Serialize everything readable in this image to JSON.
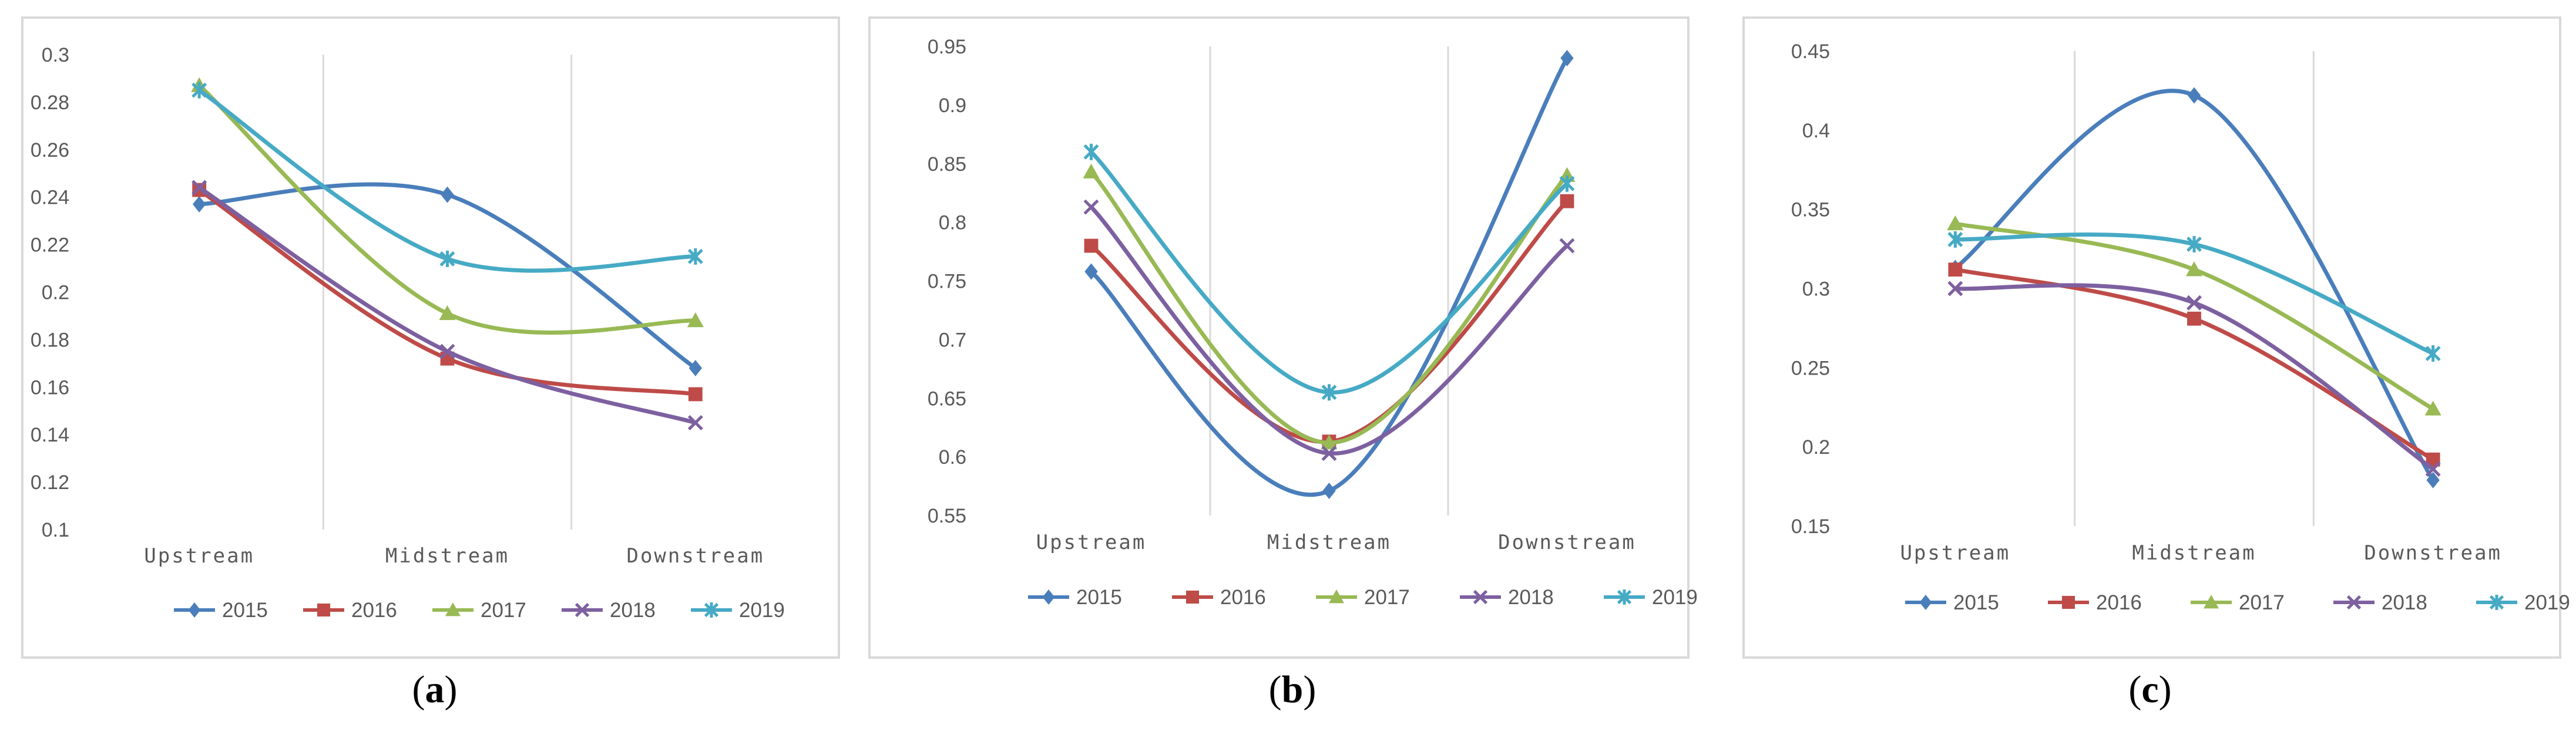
{
  "colors": {
    "2015": "#4a7ebb",
    "2016": "#be4b48",
    "2017": "#98b954",
    "2018": "#7d60a0",
    "2019": "#46aac5"
  },
  "chart_data": [
    {
      "type": "line",
      "panel_label": "a",
      "categories": [
        "Upstream",
        "Midstream",
        "Downstream"
      ],
      "ylim": [
        0.1,
        0.3
      ],
      "yticks": [
        "0.1",
        "0.12",
        "0.14",
        "0.16",
        "0.18",
        "0.2",
        "0.22",
        "0.24",
        "0.26",
        "0.28",
        "0.3"
      ],
      "legend_position": "bottom",
      "series": [
        {
          "name": "2015",
          "marker": "diamond",
          "values": [
            0.237,
            0.241,
            0.168
          ]
        },
        {
          "name": "2016",
          "marker": "square",
          "values": [
            0.243,
            0.172,
            0.157
          ]
        },
        {
          "name": "2017",
          "marker": "triangle",
          "values": [
            0.287,
            0.191,
            0.188
          ]
        },
        {
          "name": "2018",
          "marker": "x",
          "values": [
            0.244,
            0.175,
            0.145
          ]
        },
        {
          "name": "2019",
          "marker": "star",
          "values": [
            0.285,
            0.214,
            0.215
          ]
        }
      ]
    },
    {
      "type": "line",
      "panel_label": "b",
      "categories": [
        "Upstream",
        "Midstream",
        "Downstream"
      ],
      "ylim": [
        0.55,
        0.95
      ],
      "yticks": [
        "0.55",
        "0.6",
        "0.65",
        "0.7",
        "0.75",
        "0.8",
        "0.85",
        "0.9",
        "0.95"
      ],
      "legend_position": "bottom",
      "series": [
        {
          "name": "2015",
          "marker": "diamond",
          "values": [
            0.758,
            0.571,
            0.94
          ]
        },
        {
          "name": "2016",
          "marker": "square",
          "values": [
            0.78,
            0.613,
            0.818
          ]
        },
        {
          "name": "2017",
          "marker": "triangle",
          "values": [
            0.843,
            0.612,
            0.84
          ]
        },
        {
          "name": "2018",
          "marker": "x",
          "values": [
            0.813,
            0.603,
            0.78
          ]
        },
        {
          "name": "2019",
          "marker": "star",
          "values": [
            0.86,
            0.655,
            0.833
          ]
        }
      ]
    },
    {
      "type": "line",
      "panel_label": "c",
      "categories": [
        "Upstream",
        "Midstream",
        "Downstream"
      ],
      "ylim": [
        0.15,
        0.45
      ],
      "yticks": [
        "0.15",
        "0.2",
        "0.25",
        "0.3",
        "0.35",
        "0.4",
        "0.45"
      ],
      "legend_position": "bottom",
      "series": [
        {
          "name": "2015",
          "marker": "diamond",
          "values": [
            0.313,
            0.422,
            0.179
          ]
        },
        {
          "name": "2016",
          "marker": "square",
          "values": [
            0.312,
            0.281,
            0.192
          ]
        },
        {
          "name": "2017",
          "marker": "triangle",
          "values": [
            0.341,
            0.312,
            0.224
          ]
        },
        {
          "name": "2018",
          "marker": "x",
          "values": [
            0.3,
            0.291,
            0.186
          ]
        },
        {
          "name": "2019",
          "marker": "star",
          "values": [
            0.331,
            0.328,
            0.259
          ]
        }
      ]
    }
  ]
}
